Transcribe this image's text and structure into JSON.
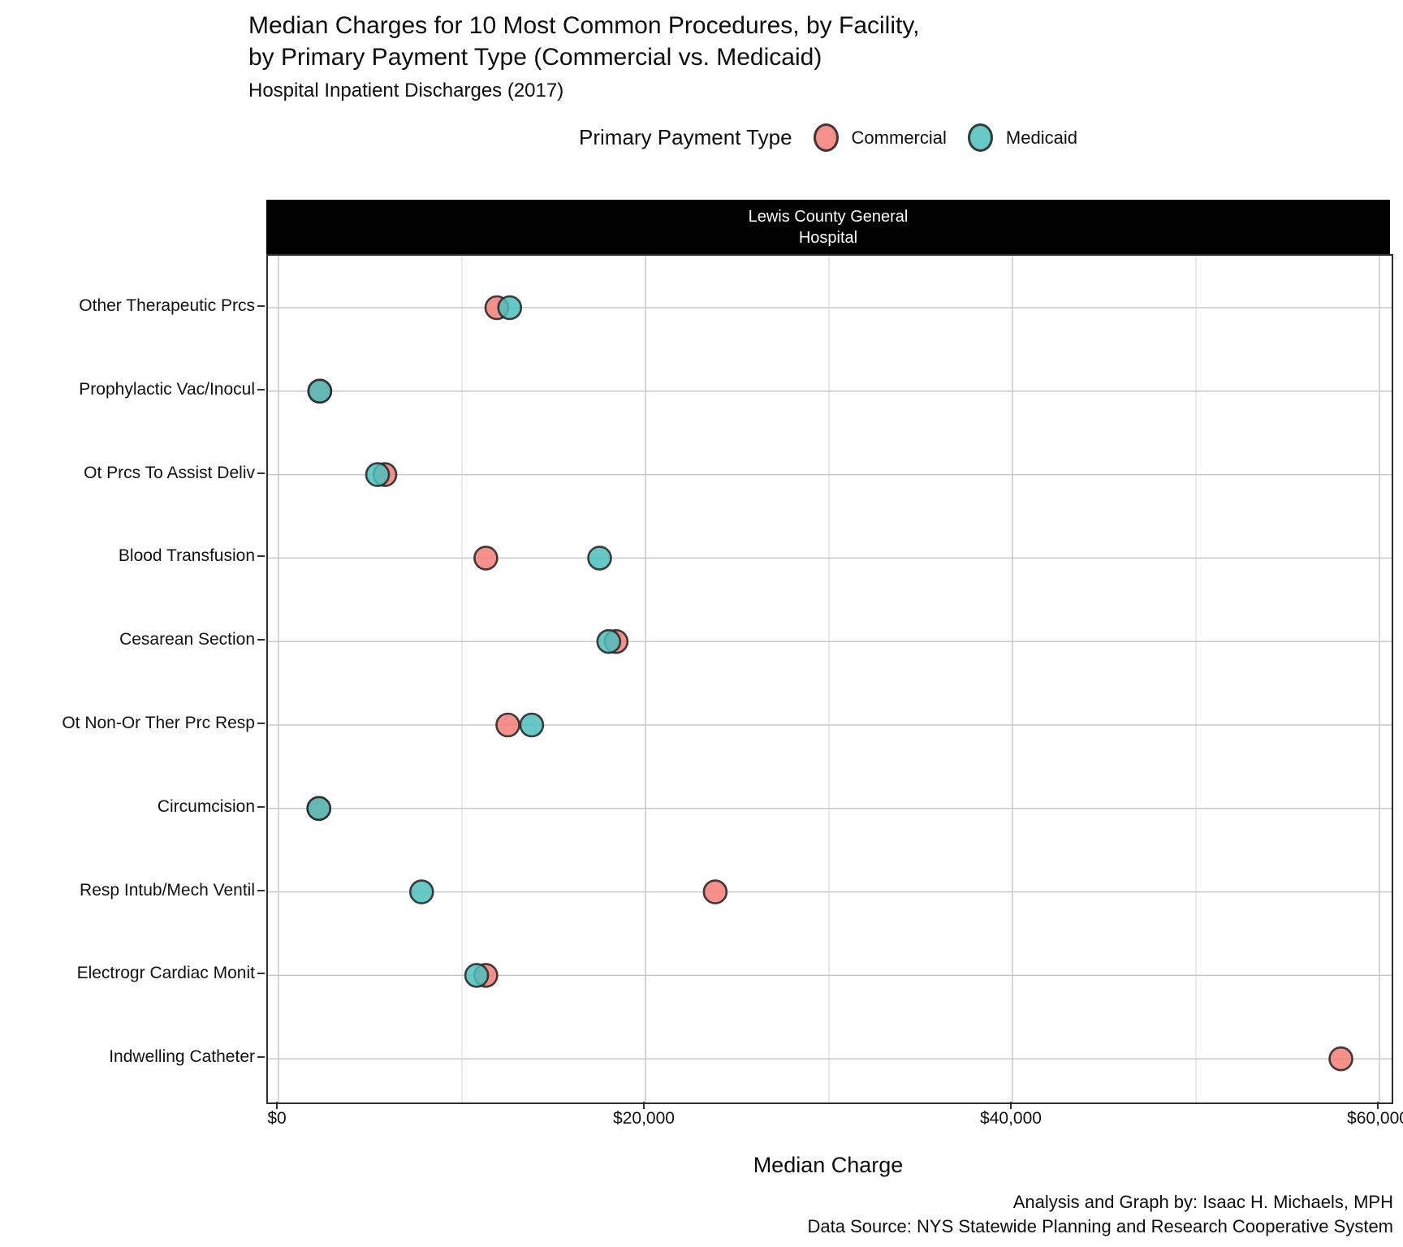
{
  "title": {
    "line1": "Median Charges for 10 Most Common Procedures, by Facility,",
    "line2": "by Primary Payment Type (Commercial vs. Medicaid)"
  },
  "subtitle": "Hospital Inpatient Discharges (2017)",
  "legend": {
    "title": "Primary Payment Type",
    "items": [
      {
        "label": "Commercial",
        "fill": "rgba(243,125,117,0.85)"
      },
      {
        "label": "Medicaid",
        "fill": "rgba(75,191,187,0.85)"
      }
    ]
  },
  "facet": {
    "line1": "Lewis County General",
    "line2": "Hospital",
    "strip_bg": "#000000",
    "strip_text": "#ffffff"
  },
  "footer": {
    "line1": "Analysis and Graph by: Isaac H. Michaels, MPH",
    "line2": "Data Source: NYS Statewide Planning and Research Cooperative System"
  },
  "chart_data": {
    "type": "scatter",
    "title": "Median Charges for 10 Most Common Procedures, by Facility, by Primary Payment Type (Commercial vs. Medicaid)",
    "subtitle": "Hospital Inpatient Discharges (2017)",
    "facet_label": "Lewis County General Hospital",
    "xlabel": "Median Charge",
    "ylabel": "",
    "categories": [
      "Other Therapeutic Prcs",
      "Prophylactic Vac/Inocul",
      "Ot Prcs To Assist Deliv",
      "Blood Transfusion",
      "Cesarean Section",
      "Ot Non-Or Ther Prc Resp",
      "Circumcision",
      "Resp Intub/Mech Ventil",
      "Electrogr Cardiac Monit",
      "Indwelling Catheter"
    ],
    "series": [
      {
        "name": "Commercial",
        "fill": "rgba(243,125,117,0.85)",
        "values": [
          11900,
          2250,
          5800,
          11300,
          18400,
          12500,
          2200,
          23800,
          11300,
          57900
        ]
      },
      {
        "name": "Medicaid",
        "fill": "rgba(75,191,187,0.85)",
        "values": [
          12600,
          2250,
          5400,
          17500,
          18000,
          13800,
          2200,
          7800,
          10800,
          null
        ]
      }
    ],
    "x_ticks": {
      "labels": [
        "$0",
        "$20,000",
        "$40,000",
        "$60,000"
      ],
      "values": [
        0,
        20000,
        40000,
        60000
      ]
    },
    "x_minor_ticks": [
      10000,
      30000,
      50000
    ],
    "xlim": [
      0,
      60700
    ],
    "grid": "on",
    "legend_position": "top",
    "colors": {
      "grid_major": "#c8c8c8",
      "grid_minor": "#e3e3e3",
      "panel_border": "#2e2e2e",
      "dot_stroke": "rgba(42,42,42,0.9)"
    }
  }
}
